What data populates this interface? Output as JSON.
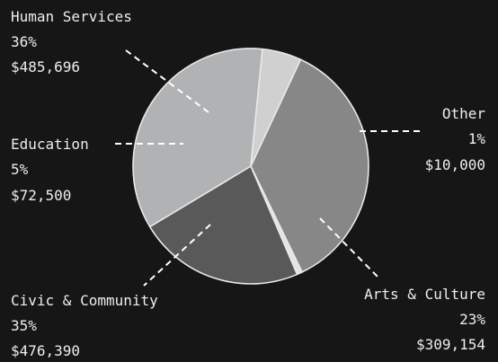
{
  "chart_data": {
    "type": "pie",
    "slices": [
      {
        "label": "Human Services",
        "percent": "36%",
        "amount": "$485,696",
        "value": 485696,
        "color": "#878787"
      },
      {
        "label": "Other",
        "percent": "1%",
        "amount": "$10,000",
        "value": 10000,
        "color": "#e4e4e4"
      },
      {
        "label": "Arts & Culture",
        "percent": "23%",
        "amount": "$309,154",
        "value": 309154,
        "color": "#595959"
      },
      {
        "label": "Civic & Community",
        "percent": "35%",
        "amount": "$476,390",
        "value": 476390,
        "color": "#b0b2b3"
      },
      {
        "label": "Education",
        "percent": "5%",
        "amount": "$72,500",
        "value": 72500,
        "color": "#d0d0d0"
      }
    ],
    "start_direction": "clockwise from about 1 o'clock",
    "label_connectors": "dashed lines"
  }
}
